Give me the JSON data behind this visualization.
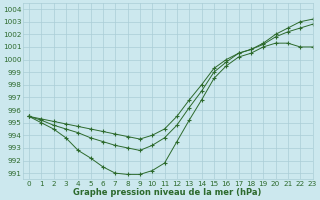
{
  "xlabel": "Graphe pression niveau de la mer (hPa)",
  "ylim": [
    990.5,
    1004.5
  ],
  "xlim": [
    -0.5,
    23
  ],
  "yticks": [
    991,
    992,
    993,
    994,
    995,
    996,
    997,
    998,
    999,
    1000,
    1001,
    1002,
    1003,
    1004
  ],
  "xticks": [
    0,
    1,
    2,
    3,
    4,
    5,
    6,
    7,
    8,
    9,
    10,
    11,
    12,
    13,
    14,
    15,
    16,
    17,
    18,
    19,
    20,
    21,
    22,
    23
  ],
  "bg_color": "#cce8ee",
  "grid_color": "#aacdd6",
  "line_color": "#2d6a2d",
  "series": [
    [
      995.5,
      995.2,
      994.8,
      994.5,
      994.2,
      993.8,
      993.5,
      993.2,
      993.0,
      992.8,
      993.2,
      993.8,
      994.8,
      996.2,
      997.5,
      999.0,
      999.8,
      1000.5,
      1000.8,
      1001.3,
      1002.0,
      1002.5,
      1003.0,
      1003.2
    ],
    [
      995.5,
      995.0,
      994.5,
      993.8,
      992.8,
      992.2,
      991.5,
      991.0,
      990.9,
      990.9,
      991.2,
      991.8,
      993.5,
      995.2,
      996.8,
      998.5,
      999.5,
      1000.2,
      1000.5,
      1001.0,
      1001.3,
      1001.3,
      1001.0,
      1001.0
    ],
    [
      995.5,
      995.3,
      995.1,
      994.9,
      994.7,
      994.5,
      994.3,
      994.1,
      993.9,
      993.7,
      994.0,
      994.5,
      995.5,
      996.8,
      998.0,
      999.3,
      1000.0,
      1000.5,
      1000.8,
      1001.2,
      1001.8,
      1002.2,
      1002.5,
      1002.8
    ]
  ],
  "tick_fontsize": 5.2,
  "label_fontsize": 6.0,
  "marker": "+"
}
